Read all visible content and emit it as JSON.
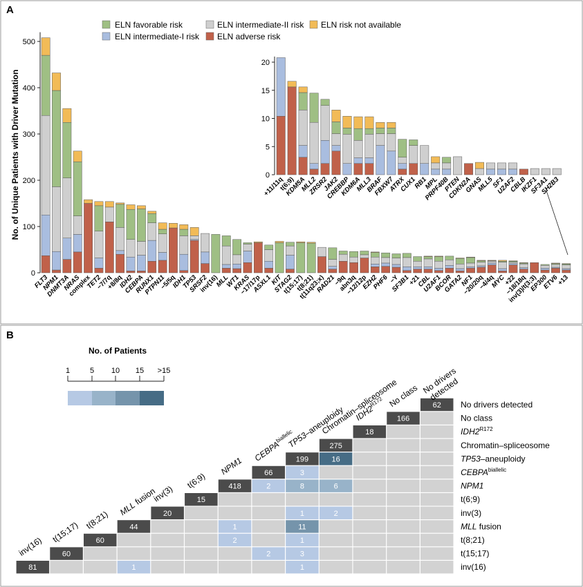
{
  "panel_a": {
    "label": "A",
    "legend": {
      "favorable": "ELN favorable risk",
      "intermediate_1": "ELN intermediate-I risk",
      "intermediate_2": "ELN intermediate-II risk",
      "adverse": "ELN adverse risk",
      "not_available": "ELN risk not available"
    },
    "colors": {
      "adverse": "#c0614a",
      "intermediate_1": "#a9bddf",
      "intermediate_2": "#cfcfcf",
      "favorable": "#9fbf84",
      "not_available": "#f2bb57"
    }
  },
  "panel_b": {
    "label": "B",
    "scale_title": "No. of Patients",
    "scale_ticks": [
      "1",
      "5",
      "10",
      "15",
      ">15"
    ],
    "scale_colors": [
      "#b6c9e4",
      "#98b3c9",
      "#7594ab",
      "#466c85"
    ],
    "diag_color": "#4b4b4b",
    "empty_color": "#d2d2d2",
    "classes": [
      {
        "top": "inv(16)",
        "right": "inv(16)",
        "italic": false,
        "sup": ""
      },
      {
        "top": "t(15;17)",
        "right": "t(15;17)",
        "italic": false,
        "sup": ""
      },
      {
        "top": "t(8;21)",
        "right": "t(8;21)",
        "italic": false,
        "sup": ""
      },
      {
        "top_it": "MLL",
        "top": " fusion",
        "right_it": "MLL",
        "right": " fusion",
        "italic": false,
        "sup": ""
      },
      {
        "top": "inv(3)",
        "right": "inv(3)",
        "italic": false,
        "sup": ""
      },
      {
        "top": "t(6;9)",
        "right": "t(6;9)",
        "italic": false,
        "sup": ""
      },
      {
        "top_it": "NPM1",
        "top": "",
        "right_it": "NPM1",
        "right": "",
        "italic": true,
        "sup": ""
      },
      {
        "top_it": "CEBPA",
        "top": "",
        "right_it": "CEBPA",
        "right": "",
        "italic": true,
        "sup": "biallelic"
      },
      {
        "top_it": "TP53",
        "top": "–aneuploidy",
        "right_it": "TP53",
        "right": "–aneuploidy",
        "italic": false,
        "sup": ""
      },
      {
        "top": "Chromatin–spliceosome",
        "right": "Chromatin–spliceosome",
        "italic": false,
        "sup": ""
      },
      {
        "top_it": "IDH2",
        "top": "",
        "right_it": "IDH2",
        "right": "",
        "italic": true,
        "sup": "R172"
      },
      {
        "top": "No class",
        "right": "No class",
        "italic": false,
        "sup": ""
      },
      {
        "top": "No drivers",
        "top2": "detected",
        "right": "No drivers detected",
        "italic": false,
        "sup": ""
      }
    ],
    "diagonal": [
      81,
      60,
      60,
      44,
      20,
      15,
      418,
      66,
      199,
      275,
      18,
      166,
      62
    ],
    "overlaps": [
      {
        "row": 0,
        "col": 3,
        "value": 1
      },
      {
        "row": 0,
        "col": 8,
        "value": 1
      },
      {
        "row": 1,
        "col": 7,
        "value": 2
      },
      {
        "row": 1,
        "col": 8,
        "value": 3
      },
      {
        "row": 2,
        "col": 6,
        "value": 2
      },
      {
        "row": 2,
        "col": 8,
        "value": 1
      },
      {
        "row": 3,
        "col": 6,
        "value": 1
      },
      {
        "row": 3,
        "col": 8,
        "value": 11
      },
      {
        "row": 4,
        "col": 8,
        "value": 1
      },
      {
        "row": 4,
        "col": 9,
        "value": 2
      },
      {
        "row": 6,
        "col": 7,
        "value": 2
      },
      {
        "row": 6,
        "col": 8,
        "value": 8
      },
      {
        "row": 6,
        "col": 9,
        "value": 6
      },
      {
        "row": 7,
        "col": 8,
        "value": 3
      },
      {
        "row": 8,
        "col": 9,
        "value": 16
      }
    ]
  },
  "chart_data": {
    "type": "bar",
    "stacked": true,
    "ylabel": "No. of Unique Patients with Driver Mutation",
    "ylim": [
      0,
      520
    ],
    "yticks": [
      0,
      100,
      200,
      300,
      400,
      500
    ],
    "stack_order": [
      "adverse",
      "intermediate_1",
      "intermediate_2",
      "favorable",
      "not_available"
    ],
    "categories": [
      "FLT3",
      "NPM1",
      "DNMT3A",
      "NRAS",
      "complex",
      "TET2",
      "−7/7q",
      "+8/8q",
      "IDH2",
      "CEBPA",
      "RUNX1",
      "PTPN11",
      "−5/5q",
      "IDH1",
      "TP53",
      "SRSF2",
      "inv(16)",
      "MLL",
      "WT1",
      "KRAS",
      "−17/17p",
      "ASXL1",
      "KIT",
      "STAG2",
      "t(15;17)",
      "t(8;21)",
      "t(11q23;x)",
      "RAD21",
      "−9q",
      "abn3q",
      "−12/12p",
      "EZH2",
      "PHF6",
      "−Y",
      "SF3B1",
      "+21",
      "CBL",
      "U2AF1",
      "BCOR",
      "GATA2",
      "NF1",
      "−20/20q",
      "−4/4q",
      "MYC",
      "+22",
      "−18/18q",
      "inv(3)/t(3;3)",
      "EP300",
      "ETV6",
      "+13"
    ],
    "italic": [
      true,
      true,
      true,
      true,
      false,
      true,
      false,
      false,
      true,
      true,
      true,
      true,
      false,
      true,
      true,
      true,
      false,
      true,
      true,
      true,
      false,
      true,
      true,
      true,
      false,
      false,
      false,
      true,
      false,
      false,
      false,
      true,
      true,
      false,
      true,
      false,
      true,
      true,
      true,
      true,
      true,
      false,
      false,
      true,
      false,
      false,
      false,
      true,
      true,
      false
    ],
    "series": [
      {
        "name": "ELN adverse risk",
        "key": "adverse",
        "values": [
          37,
          6,
          29,
          45,
          150,
          10,
          110,
          40,
          4,
          4,
          25,
          27,
          97,
          5,
          70,
          20,
          0,
          10,
          9,
          22,
          65,
          10,
          0,
          8,
          0,
          0,
          35,
          8,
          25,
          22,
          32,
          13,
          14,
          12,
          5,
          8,
          8,
          5,
          10,
          4,
          10,
          12,
          17,
          4,
          17,
          8,
          22,
          6,
          10,
          6
        ]
      },
      {
        "name": "ELN intermediate-I risk",
        "key": "intermediate_1",
        "values": [
          88,
          40,
          46,
          38,
          0,
          22,
          0,
          8,
          30,
          34,
          45,
          17,
          0,
          35,
          2,
          25,
          0,
          8,
          10,
          25,
          0,
          15,
          0,
          30,
          0,
          0,
          0,
          6,
          0,
          0,
          0,
          6,
          7,
          6,
          8,
          5,
          5,
          5,
          6,
          5,
          3,
          3,
          4,
          5,
          3,
          3,
          0,
          4,
          2,
          3
        ]
      },
      {
        "name": "ELN intermediate-II risk",
        "key": "intermediate_2",
        "values": [
          215,
          140,
          130,
          40,
          0,
          58,
          32,
          50,
          38,
          30,
          38,
          40,
          0,
          40,
          8,
          40,
          0,
          40,
          20,
          15,
          0,
          25,
          0,
          20,
          0,
          0,
          20,
          15,
          15,
          12,
          7,
          15,
          12,
          14,
          20,
          12,
          17,
          15,
          12,
          10,
          8,
          8,
          4,
          14,
          3,
          8,
          0,
          6,
          6,
          8
        ]
      },
      {
        "name": "ELN favorable risk",
        "key": "favorable",
        "values": [
          130,
          208,
          120,
          117,
          0,
          55,
          0,
          50,
          65,
          70,
          20,
          10,
          0,
          14,
          0,
          0,
          83,
          22,
          33,
          3,
          0,
          10,
          65,
          8,
          65,
          64,
          0,
          25,
          7,
          12,
          8,
          10,
          10,
          9,
          9,
          10,
          5,
          10,
          8,
          12,
          12,
          3,
          1,
          2,
          2,
          2,
          0,
          2,
          2,
          2
        ]
      },
      {
        "name": "ELN risk not available",
        "key": "not_available",
        "values": [
          38,
          38,
          30,
          23,
          8,
          9,
          12,
          3,
          10,
          7,
          5,
          14,
          10,
          10,
          18,
          0,
          0,
          0,
          0,
          0,
          2,
          0,
          3,
          0,
          2,
          2,
          0,
          0,
          0,
          0,
          0,
          1,
          0,
          0,
          0,
          0,
          1,
          1,
          0,
          1,
          1,
          1,
          1,
          2,
          1,
          1,
          0,
          0,
          1,
          1
        ]
      }
    ],
    "inset": {
      "ylim": [
        0,
        21
      ],
      "yticks": [
        0,
        5,
        10,
        15,
        20
      ],
      "categories": [
        "+11/11q",
        "t(6;9)",
        "KDM5A",
        "MLL2",
        "ZRSR2",
        "JAK2",
        "CREBBP",
        "KDM6A",
        "MLL3",
        "BRAF",
        "FBXW7",
        "ATRX",
        "CUX1",
        "RB1",
        "MPL",
        "PRPF40B",
        "PTEN",
        "CDKN2A",
        "GNAS",
        "MLL5",
        "SF1",
        "U2AF2",
        "CBLB",
        "IKZF1",
        "SF3A1",
        "SH2B3"
      ],
      "italic": [
        false,
        false,
        true,
        true,
        true,
        true,
        true,
        true,
        true,
        true,
        true,
        true,
        true,
        true,
        true,
        true,
        true,
        true,
        true,
        true,
        true,
        true,
        true,
        true,
        true,
        true
      ],
      "series": [
        {
          "name": "ELN adverse risk",
          "key": "adverse",
          "values": [
            10.4,
            15.6,
            3.1,
            1.0,
            2.0,
            4.2,
            0,
            2.0,
            2.0,
            0,
            0,
            1.0,
            2.0,
            0,
            0,
            0,
            0,
            2.0,
            0,
            0,
            0,
            0,
            1.0,
            0,
            0,
            0
          ]
        },
        {
          "name": "ELN intermediate-I risk",
          "key": "intermediate_1",
          "values": [
            10.4,
            0,
            2.1,
            1.0,
            4.1,
            1.0,
            2.0,
            1.0,
            1.0,
            5.2,
            4.2,
            1.0,
            0,
            2.0,
            1.0,
            1.0,
            0,
            0,
            0,
            1.0,
            1.0,
            1.0,
            0,
            0,
            0,
            0
          ]
        },
        {
          "name": "ELN intermediate-II risk",
          "key": "intermediate_2",
          "values": [
            0,
            0,
            6.3,
            7.3,
            6.2,
            2.1,
            5.2,
            3.1,
            4.2,
            2.1,
            3.1,
            1.1,
            3.2,
            3.2,
            1.1,
            1.1,
            3.2,
            0,
            1.1,
            1.1,
            1.1,
            1.1,
            0,
            1.1,
            1.1,
            1.1
          ]
        },
        {
          "name": "ELN favorable risk",
          "key": "favorable",
          "values": [
            0,
            0,
            3.1,
            5.2,
            1.1,
            2.1,
            1.1,
            2.1,
            1.0,
            1.0,
            1.0,
            3.2,
            1.0,
            0,
            0,
            1.0,
            0,
            0,
            0,
            0,
            0,
            0,
            0,
            0,
            0,
            0
          ]
        },
        {
          "name": "ELN risk not available",
          "key": "not_available",
          "values": [
            0,
            1.0,
            1.0,
            0,
            0,
            2.1,
            2.1,
            2.1,
            2.1,
            1.0,
            1.0,
            0,
            0,
            0,
            1.1,
            0,
            0,
            0,
            1.1,
            0,
            0,
            0,
            0,
            0,
            0,
            0
          ]
        }
      ]
    }
  }
}
